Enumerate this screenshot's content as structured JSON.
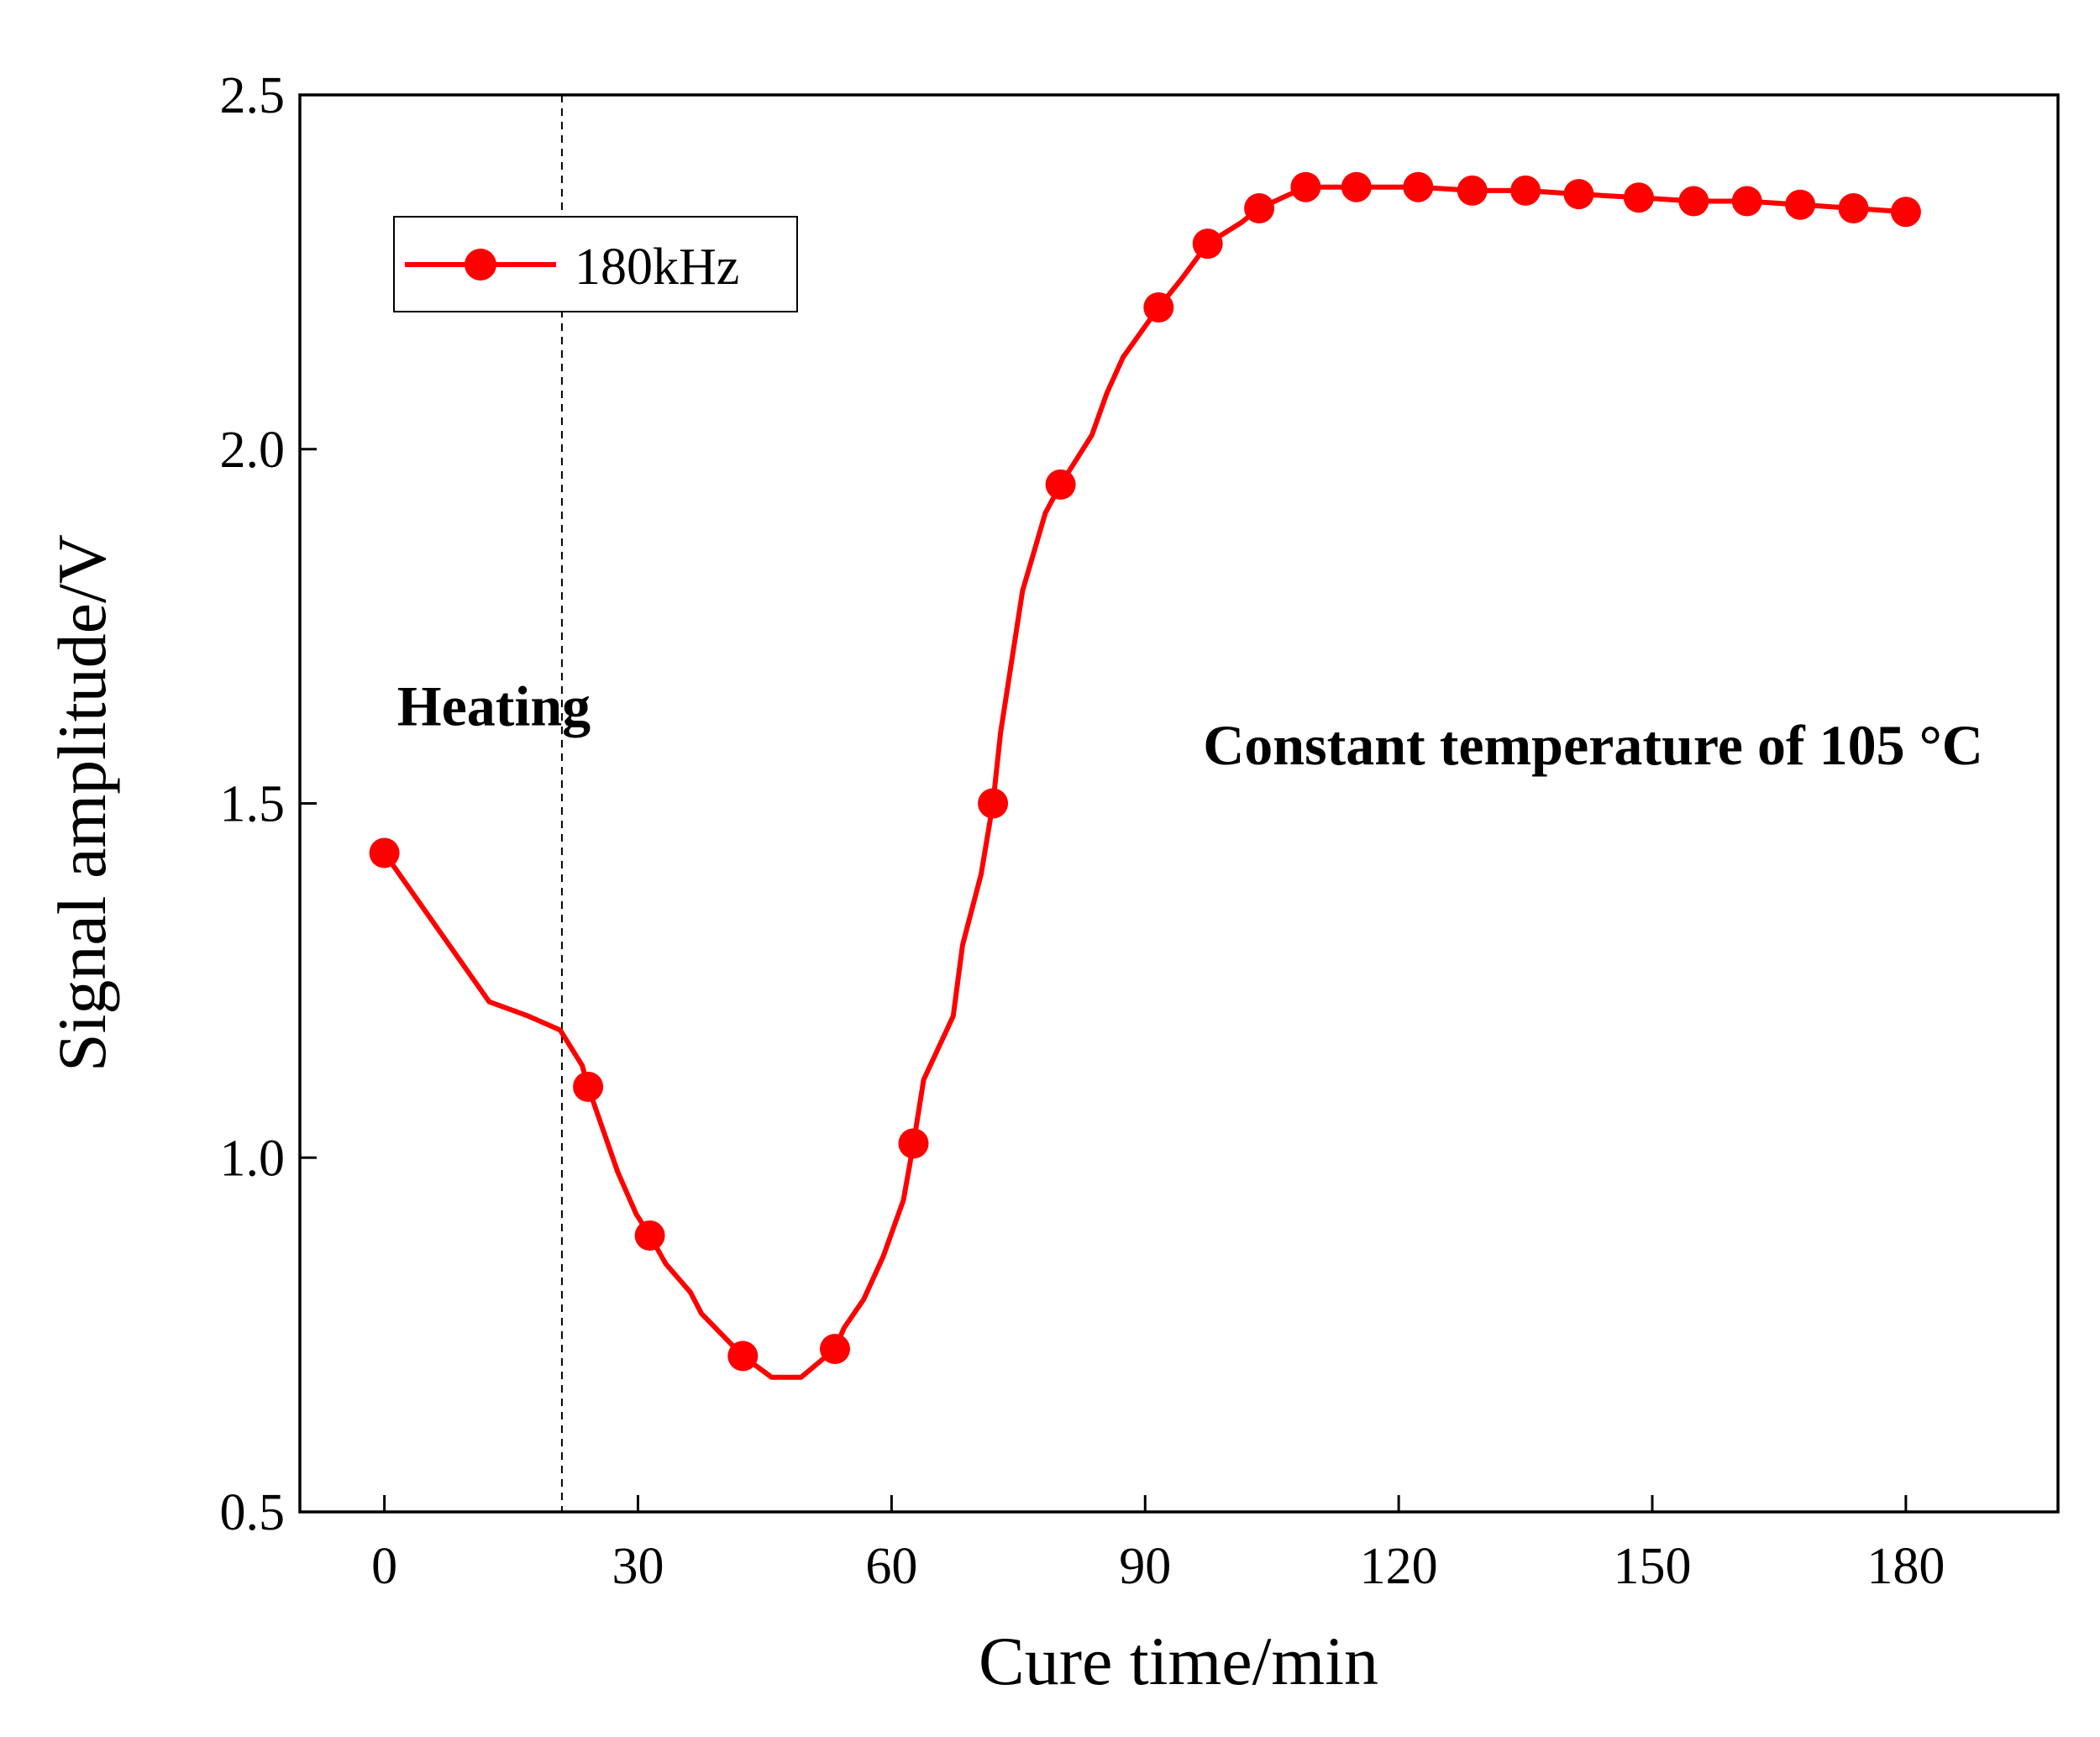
{
  "chart_data": {
    "type": "line",
    "title": "",
    "xlabel": "Cure time/min",
    "ylabel": "Signal amplitude/V",
    "xlim": [
      -10,
      198
    ],
    "ylim": [
      0.5,
      2.5
    ],
    "xticks": [
      0,
      30,
      60,
      90,
      120,
      150,
      180
    ],
    "xtick_labels": [
      "0",
      "30",
      "60",
      "90",
      "120",
      "150",
      "180"
    ],
    "yticks": [
      0.5,
      1.0,
      1.5,
      2.0,
      2.5
    ],
    "ytick_labels": [
      "0.5",
      "1.0",
      "1.5",
      "2.0",
      "2.5"
    ],
    "grid": false,
    "legend_position": "top-left",
    "series": [
      {
        "name": "180kHz",
        "color": "#ff0000",
        "line": {
          "x": [
            0,
            12.4,
            17.0,
            20.8,
            23.4,
            24.1,
            27.6,
            29.8,
            31.4,
            33.3,
            36.2,
            37.5,
            42.4,
            45.8,
            49.3,
            53.3,
            54.4,
            56.7,
            59.0,
            61.4,
            62.6,
            63.8,
            67.3,
            68.4,
            70.6,
            72.0,
            72.9,
            75.5,
            78.2,
            80.0,
            83.7,
            85.5,
            87.4,
            91.6,
            94.3,
            97.4,
            101.4,
            103.5,
            109.0,
            115.0,
            122.3,
            128.7,
            135.0,
            141.3,
            148.4,
            154.9,
            161.2,
            167.5,
            173.8,
            180.0
          ],
          "y": [
            1.43,
            1.22,
            1.2,
            1.18,
            1.13,
            1.1,
            0.98,
            0.92,
            0.89,
            0.85,
            0.81,
            0.78,
            0.72,
            0.69,
            0.69,
            0.73,
            0.76,
            0.8,
            0.86,
            0.94,
            1.02,
            1.11,
            1.2,
            1.3,
            1.4,
            1.5,
            1.6,
            1.8,
            1.91,
            1.95,
            2.02,
            2.08,
            2.13,
            2.2,
            2.24,
            2.29,
            2.32,
            2.34,
            2.37,
            2.37,
            2.37,
            2.365,
            2.365,
            2.36,
            2.355,
            2.35,
            2.35,
            2.345,
            2.34,
            2.335
          ]
        },
        "markers": {
          "x": [
            0,
            24.1,
            31.4,
            42.4,
            53.3,
            62.6,
            72.0,
            80.0,
            91.6,
            97.4,
            103.5,
            109.0,
            115.0,
            122.3,
            128.7,
            135.0,
            141.3,
            148.4,
            154.9,
            161.2,
            167.5,
            173.8,
            180.0
          ],
          "y": [
            1.43,
            1.1,
            0.89,
            0.72,
            0.73,
            1.02,
            1.5,
            1.95,
            2.2,
            2.29,
            2.34,
            2.37,
            2.37,
            2.37,
            2.365,
            2.365,
            2.36,
            2.355,
            2.35,
            2.35,
            2.345,
            2.34,
            2.335
          ]
        }
      }
    ],
    "vline": {
      "x": 21,
      "style": "dashed"
    },
    "annotations": [
      {
        "text": "Heating",
        "x": 1.5,
        "y": 1.61
      },
      {
        "text": "Constant temperature of 105 °C",
        "x": 143,
        "y": 1.555
      }
    ]
  }
}
